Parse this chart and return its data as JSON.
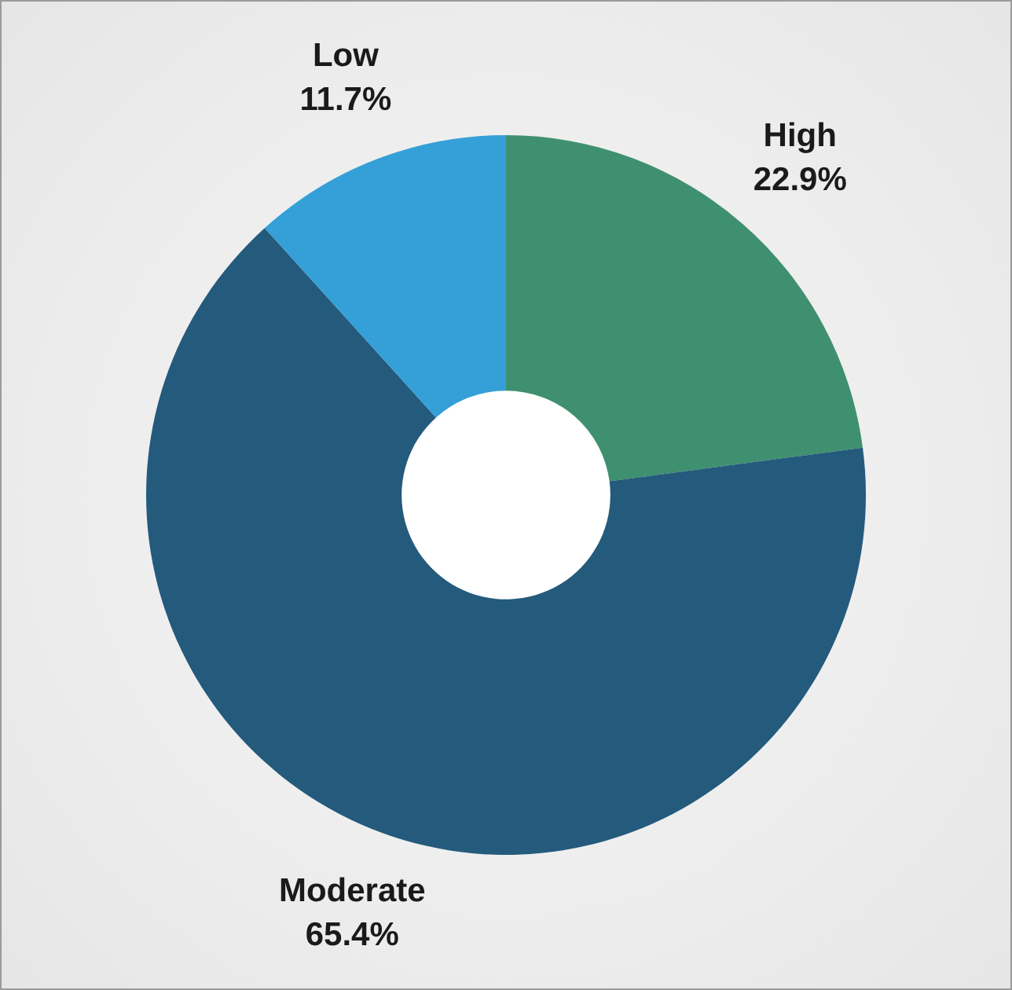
{
  "chart_data": {
    "type": "donut",
    "categories": [
      "High",
      "Moderate",
      "Low"
    ],
    "values": [
      22.9,
      65.4,
      11.7
    ],
    "colors": [
      "#3f9070",
      "#245a7c",
      "#35a0d8"
    ],
    "value_labels": [
      "22.9%",
      "65.4%",
      "11.7%"
    ],
    "legend": false
  }
}
